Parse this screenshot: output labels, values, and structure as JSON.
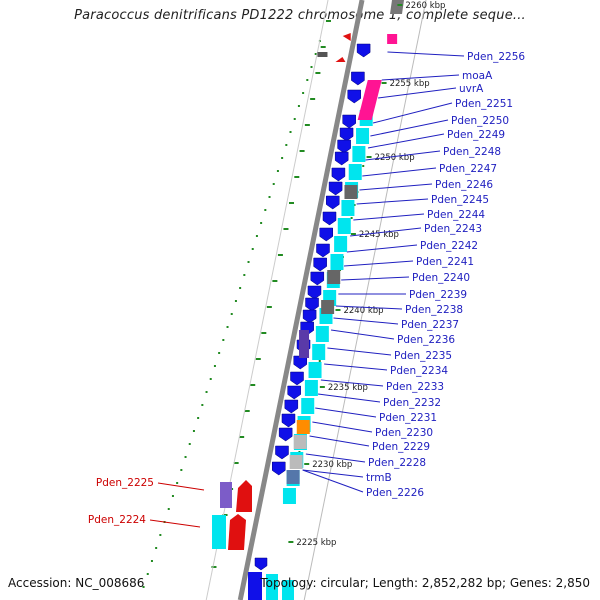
{
  "title": "Paracoccus denitrificans PD1222 chromosome 1, complete seque...",
  "footer": {
    "accession": "Accession: NC_008686",
    "topology": "Topology: circular; Length: 2,852,282 bp; Genes: 2,850"
  },
  "colors": {
    "blue_genes": "#1010e8",
    "red_genes": "#e01010",
    "label_blue": "#2020c0",
    "label_red": "#cc0000",
    "cyan_track": "#00e5ee",
    "backbone": "#888888",
    "tick_green": "#228b22",
    "magenta": "#ff1493",
    "orange": "#ff8c00"
  },
  "scale_labels": [
    "2260 kbp",
    "2255 kbp",
    "2250 kbp",
    "2245 kbp",
    "2240 kbp",
    "2235 kbp",
    "2230 kbp",
    "2225 kbp"
  ],
  "genes_right": [
    "Pden_2256",
    "moaA",
    "uvrA",
    "Pden_2251",
    "Pden_2250",
    "Pden_2249",
    "Pden_2248",
    "Pden_2247",
    "Pden_2246",
    "Pden_2245",
    "Pden_2244",
    "Pden_2243",
    "Pden_2242",
    "Pden_2241",
    "Pden_2240",
    "Pden_2239",
    "Pden_2238",
    "Pden_2237",
    "Pden_2236",
    "Pden_2235",
    "Pden_2234",
    "Pden_2233",
    "Pden_2232",
    "Pden_2231",
    "Pden_2230",
    "Pden_2229",
    "Pden_2228",
    "trmB",
    "Pden_2226"
  ],
  "genes_left": [
    "Pden_2225",
    "Pden_2224"
  ]
}
